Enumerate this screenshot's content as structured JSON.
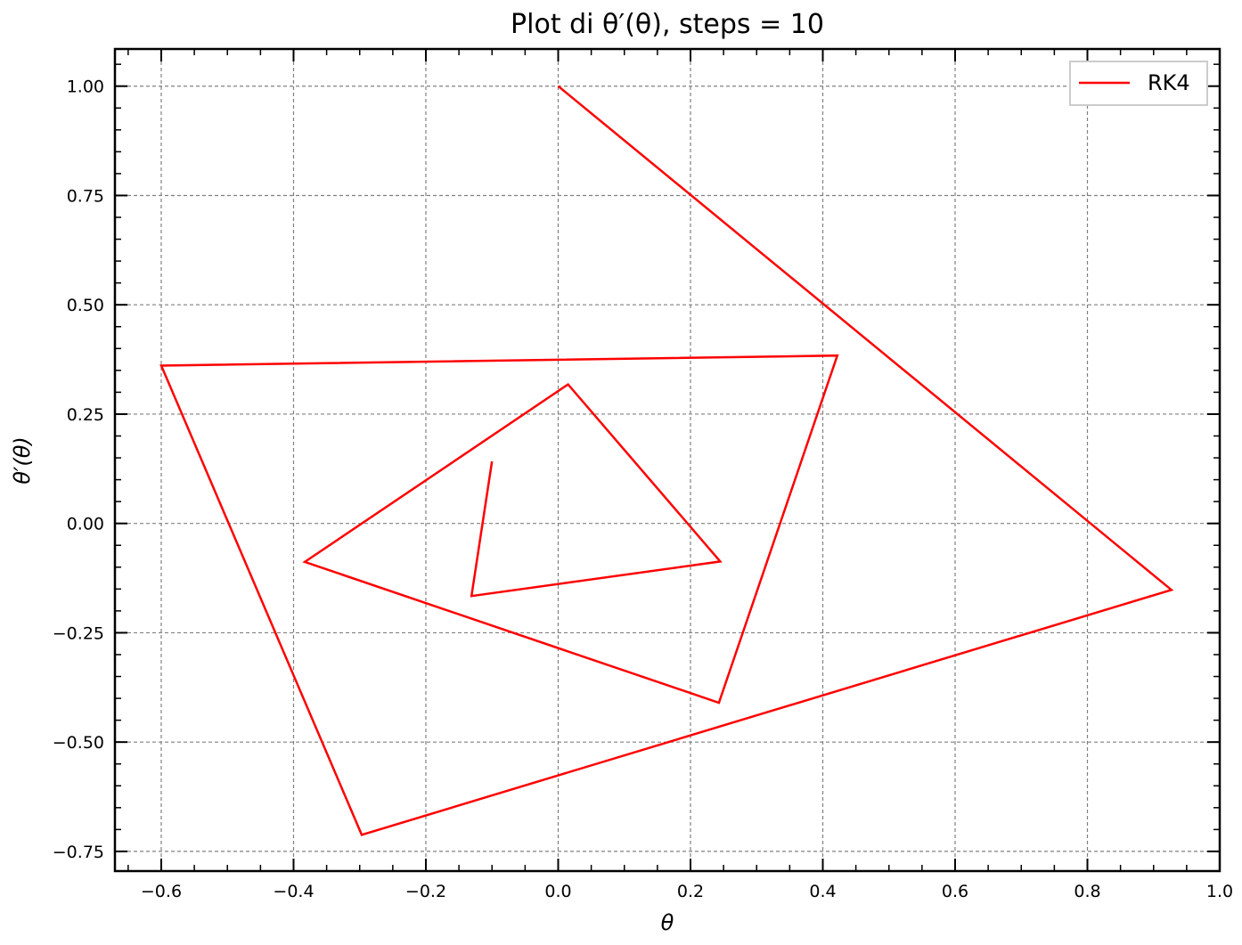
{
  "chart_data": {
    "type": "line",
    "title": "Plot di θ′(θ), steps = 10",
    "xlabel": "θ",
    "ylabel": "θ′(θ)",
    "xlim": [
      -0.67,
      1.0
    ],
    "ylim": [
      -0.795,
      1.085
    ],
    "xticks": [
      -0.6,
      -0.4,
      -0.2,
      0.0,
      0.2,
      0.4,
      0.6,
      0.8,
      1.0
    ],
    "xtick_labels": [
      "−0.6",
      "−0.4",
      "−0.2",
      "0.0",
      "0.2",
      "0.4",
      "0.6",
      "0.8",
      "1.0"
    ],
    "yticks": [
      -0.75,
      -0.5,
      -0.25,
      0.0,
      0.25,
      0.5,
      0.75,
      1.0
    ],
    "ytick_labels": [
      "−0.75",
      "−0.50",
      "−0.25",
      "0.00",
      "0.25",
      "0.50",
      "0.75",
      "1.00"
    ],
    "grid": true,
    "legend_position": "top-right",
    "series": [
      {
        "name": "RK4",
        "color": "#ff0000",
        "x": [
          0.0,
          0.927,
          -0.297,
          -0.6,
          0.422,
          0.243,
          -0.383,
          0.015,
          0.245,
          -0.131,
          -0.1
        ],
        "y": [
          1.0,
          -0.152,
          -0.712,
          0.361,
          0.384,
          -0.41,
          -0.088,
          0.318,
          -0.087,
          -0.166,
          0.142
        ]
      }
    ]
  }
}
